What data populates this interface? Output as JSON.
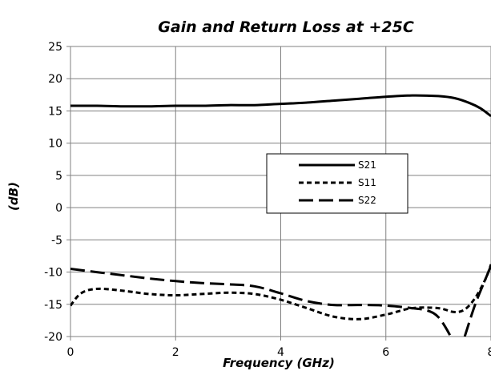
{
  "chart_data": {
    "type": "line",
    "title": "Gain and Return Loss at +25C",
    "xlabel": "Frequency (GHz)",
    "ylabel": "(dB)",
    "xlim": [
      0,
      8
    ],
    "ylim": [
      -20,
      25
    ],
    "xticks": [
      0,
      2,
      4,
      6,
      8
    ],
    "yticks": [
      25,
      20,
      15,
      10,
      5,
      0,
      -5,
      -10,
      -15,
      -20
    ],
    "grid": true,
    "legend_position": "center-right",
    "series": [
      {
        "name": "S21",
        "style": "solid",
        "x": [
          0,
          0.5,
          1,
          1.5,
          2,
          2.5,
          3,
          3.5,
          4,
          4.5,
          5,
          5.5,
          6,
          6.5,
          7,
          7.3,
          7.6,
          7.8,
          8
        ],
        "y": [
          15.8,
          15.8,
          15.7,
          15.7,
          15.8,
          15.8,
          15.9,
          15.9,
          16.1,
          16.3,
          16.6,
          16.9,
          17.2,
          17.4,
          17.3,
          17.0,
          16.2,
          15.4,
          14.2
        ]
      },
      {
        "name": "S11",
        "style": "short-dash",
        "x": [
          0,
          0.2,
          0.5,
          1,
          1.5,
          2,
          2.5,
          3,
          3.5,
          4,
          4.5,
          5,
          5.5,
          6,
          6.5,
          7,
          7.3,
          7.5,
          7.7,
          7.9,
          8
        ],
        "y": [
          -15.2,
          -13.3,
          -12.6,
          -12.9,
          -13.4,
          -13.6,
          -13.4,
          -13.2,
          -13.4,
          -14.3,
          -15.6,
          -16.9,
          -17.3,
          -16.6,
          -15.6,
          -15.6,
          -16.2,
          -15.8,
          -14.0,
          -11.0,
          -8.8
        ]
      },
      {
        "name": "S22",
        "style": "long-dash",
        "x": [
          0,
          0.5,
          1,
          1.5,
          2,
          2.5,
          3,
          3.5,
          4,
          4.5,
          5,
          5.5,
          6,
          6.5,
          6.8,
          7.0,
          7.2,
          7.3
        ],
        "y": [
          -9.5,
          -10.0,
          -10.5,
          -11.0,
          -11.4,
          -11.7,
          -11.9,
          -12.2,
          -13.3,
          -14.5,
          -15.1,
          -15.1,
          -15.2,
          -15.6,
          -16.0,
          -17.0,
          -19.5,
          -21.5
        ]
      },
      {
        "name": "S22",
        "style": "long-dash",
        "x": [
          7.5,
          7.7,
          7.9,
          8
        ],
        "y": [
          -20.0,
          -15.0,
          -11.0,
          -9.0
        ]
      }
    ]
  }
}
